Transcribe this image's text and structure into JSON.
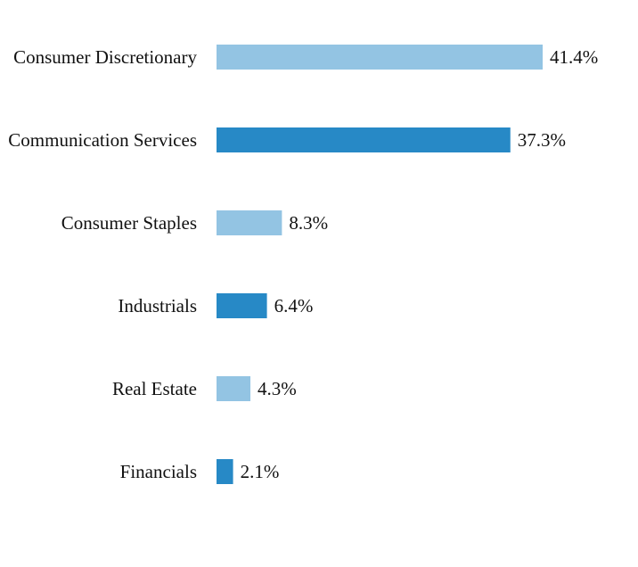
{
  "chart_data": {
    "type": "bar",
    "orientation": "horizontal",
    "categories": [
      "Consumer Discretionary",
      "Communication Services",
      "Consumer Staples",
      "Industrials",
      "Real Estate",
      "Financials"
    ],
    "values": [
      41.4,
      37.3,
      8.3,
      6.4,
      4.3,
      2.1
    ],
    "value_labels": [
      "41.4%",
      "37.3%",
      "8.3%",
      "6.4%",
      "4.3%",
      "2.1%"
    ],
    "unit": "%",
    "xlim": [
      0,
      41.4
    ],
    "grid": false,
    "legend": "none",
    "colors": [
      "#93c4e3",
      "#2789c6",
      "#93c4e3",
      "#2789c6",
      "#93c4e3",
      "#2789c6"
    ]
  }
}
